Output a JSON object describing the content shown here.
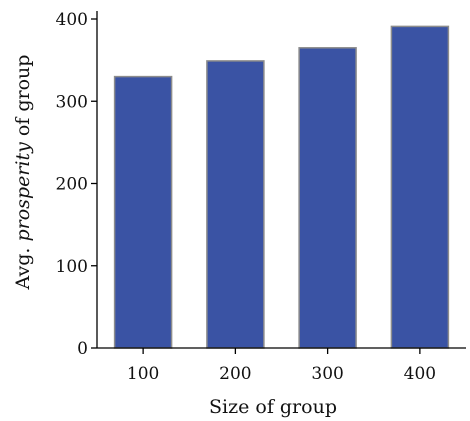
{
  "chart_data": {
    "type": "bar",
    "categories": [
      "100",
      "200",
      "300",
      "400"
    ],
    "values": [
      330,
      349,
      365,
      391
    ],
    "xlabel": "Size of group",
    "ylabel": {
      "prefix": "Avg. ",
      "emphasis": "prosperity",
      "suffix": " of group"
    },
    "yticks": [
      "0",
      "100",
      "200",
      "300",
      "400"
    ],
    "ylim": [
      0,
      410
    ],
    "grid": false,
    "legend": "none",
    "bar_color": "#3a53a4",
    "bar_edge_color": "#8c8c8c",
    "axis_color": "#000000"
  }
}
